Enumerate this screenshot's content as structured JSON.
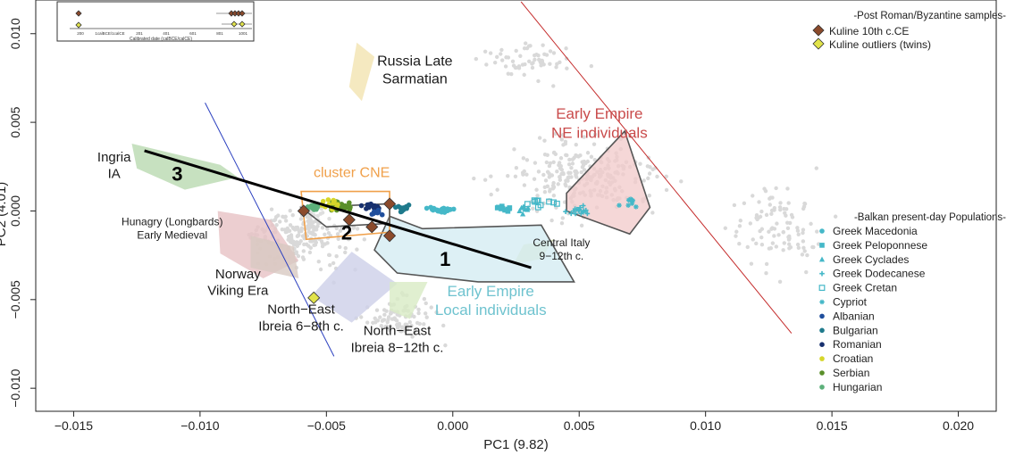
{
  "chart_data": {
    "type": "scatter",
    "xlabel": "PC1 (9.82)",
    "ylabel": "PC2 (4.01)",
    "xlim": [
      -0.0165,
      0.0215
    ],
    "ylim": [
      -0.0113,
      0.0119
    ],
    "xticks": [
      -0.015,
      -0.01,
      -0.005,
      0.0,
      0.005,
      0.01,
      0.015,
      0.02
    ],
    "xtick_labels": [
      "−0.015",
      "−0.010",
      "−0.005",
      "0.000",
      "0.005",
      "0.010",
      "0.015",
      "0.020"
    ],
    "yticks": [
      -0.01,
      -0.005,
      0.0,
      0.005,
      0.01
    ],
    "ytick_labels": [
      "−0.010",
      "−0.005",
      "0.000",
      "0.005",
      "0.010"
    ],
    "legend_post_roman": {
      "title": "-Post Roman/Byzantine samples-",
      "entries": [
        {
          "name": "Kuline 10th c.CE",
          "color": "#8b4a2b",
          "marker": "diamond"
        },
        {
          "name": "Kuline outliers (twins)",
          "color": "#e1e34a",
          "marker": "diamond"
        }
      ]
    },
    "legend_balkan": {
      "title": "-Balkan present-day Populations-",
      "entries": [
        {
          "name": "Greek Macedonia",
          "color": "#45b8c8",
          "marker": "circle"
        },
        {
          "name": "Greek Peloponnese",
          "color": "#45b8c8",
          "marker": "square"
        },
        {
          "name": "Greek Cyclades",
          "color": "#45b8c8",
          "marker": "triangle"
        },
        {
          "name": "Greek Dodecanese",
          "color": "#45b8c8",
          "marker": "plus"
        },
        {
          "name": "Greek Cretan",
          "color": "#45b8c8",
          "marker": "square-open"
        },
        {
          "name": "Cypriot",
          "color": "#45b8c8",
          "marker": "star"
        },
        {
          "name": "Albanian",
          "color": "#1f4e9c",
          "marker": "circle"
        },
        {
          "name": "Bulgarian",
          "color": "#1f7a8c",
          "marker": "circle"
        },
        {
          "name": "Romanian",
          "color": "#17306e",
          "marker": "circle"
        },
        {
          "name": "Croatian",
          "color": "#d6d62a",
          "marker": "circle"
        },
        {
          "name": "Serbian",
          "color": "#5a8f2a",
          "marker": "circle"
        },
        {
          "name": "Hungarian",
          "color": "#5cb07a",
          "marker": "circle"
        }
      ]
    },
    "kuline_10th": [
      [
        -0.0059,
        0.0
      ],
      [
        -0.0041,
        -0.0005
      ],
      [
        -0.0032,
        -0.0009
      ],
      [
        -0.0025,
        -0.0014
      ],
      [
        -0.0025,
        0.0004
      ]
    ],
    "kuline_outliers": [
      [
        -0.0055,
        -0.0049
      ]
    ],
    "regions": [
      {
        "label": "Russia Late\nSarmatian",
        "color": "#f3e3b0",
        "points": [
          [
            -0.0038,
            0.0095
          ],
          [
            -0.0031,
            0.0087
          ],
          [
            -0.0036,
            0.0062
          ],
          [
            -0.0041,
            0.007
          ]
        ],
        "label_at": [
          -0.0015,
          0.0082
        ],
        "label_color": "#1a1a1a",
        "label_size": 16
      },
      {
        "label": "Ingria\nIA",
        "color": "#b9d9b0",
        "points": [
          [
            -0.0127,
            0.0038
          ],
          [
            -0.0092,
            0.0026
          ],
          [
            -0.0085,
            0.0019
          ],
          [
            -0.0106,
            0.0012
          ],
          [
            -0.0125,
            0.0024
          ]
        ],
        "label_at": [
          -0.0134,
          0.0028
        ],
        "label_color": "#1a1a1a",
        "label_size": 15
      },
      {
        "label": "Hunagry (Longbards)\nEarly Medieval",
        "color": "#e7c2c4",
        "points": [
          [
            -0.0093,
            0.0
          ],
          [
            -0.0072,
            -0.0005
          ],
          [
            -0.0061,
            -0.0028
          ],
          [
            -0.0075,
            -0.0038
          ],
          [
            -0.0092,
            -0.0024
          ]
        ],
        "label_at": [
          -0.0111,
          -0.0008
        ],
        "label_color": "#1a1a1a",
        "label_size": 12
      },
      {
        "label": "Norway\nViking Era",
        "color": "#d8c9c2",
        "points": [
          [
            -0.008,
            -0.0014
          ],
          [
            -0.0063,
            -0.002
          ],
          [
            -0.0061,
            -0.0038
          ],
          [
            -0.008,
            -0.0032
          ]
        ],
        "label_at": [
          -0.0085,
          -0.0038
        ],
        "label_color": "#1a1a1a",
        "label_size": 15
      },
      {
        "label": "North−East\nIbreia 6−8th c.",
        "color": "#cdd0e8",
        "points": [
          [
            -0.004,
            -0.0023
          ],
          [
            -0.0022,
            -0.0041
          ],
          [
            -0.004,
            -0.0063
          ],
          [
            -0.0056,
            -0.0048
          ]
        ],
        "label_at": [
          -0.006,
          -0.0058
        ],
        "label_color": "#1a1a1a",
        "label_size": 15
      },
      {
        "label": "North−East\nIbreia 8−12th c.",
        "color": "#d8ebc4",
        "points": [
          [
            -0.0025,
            -0.004
          ],
          [
            -0.001,
            -0.004
          ],
          [
            -0.0017,
            -0.0061
          ],
          [
            -0.0025,
            -0.0056
          ]
        ],
        "label_at": [
          -0.0022,
          -0.007
        ],
        "label_color": "#1a1a1a",
        "label_size": 15
      },
      {
        "label": "Central Italy\n9−12th c.",
        "color": "#e3ecc0",
        "points": [
          [
            0.0028,
            -0.0019
          ],
          [
            0.004,
            -0.0016
          ],
          [
            0.0035,
            -0.0027
          ],
          [
            0.0024,
            -0.003
          ]
        ],
        "label_at": [
          0.0043,
          -0.002
        ],
        "label_color": "#1a1a1a",
        "label_size": 12
      }
    ],
    "outlined_regions": [
      {
        "label": "Early Empire\nLocal individuals",
        "fill": "#d2ebf2",
        "points": [
          [
            -0.0025,
            -0.0003
          ],
          [
            -0.0012,
            -0.001
          ],
          [
            0.0035,
            -0.0008
          ],
          [
            0.0048,
            -0.004
          ],
          [
            0.001,
            -0.004
          ],
          [
            -0.0022,
            -0.0035
          ],
          [
            -0.0031,
            -0.0022
          ]
        ],
        "label_at": [
          0.0015,
          -0.0048
        ],
        "label_color": "#6fc3cf",
        "label_size": 17
      },
      {
        "label": "Early Empire\nNE individuals",
        "fill": "#f2c9c9",
        "points": [
          [
            0.0045,
            0.001
          ],
          [
            0.0068,
            0.0045
          ],
          [
            0.0078,
            0.0002
          ],
          [
            0.007,
            -0.0013
          ],
          [
            0.0045,
            0.0
          ]
        ],
        "label_at": [
          0.0058,
          0.0052
        ],
        "label_color": "#c94b4b",
        "label_size": 17
      },
      {
        "label": "cluster CNE",
        "fill": "none",
        "stroke": "#f0a04a",
        "points": [
          [
            -0.006,
            0.0011
          ],
          [
            -0.0025,
            0.0011
          ],
          [
            -0.0025,
            -0.0012
          ],
          [
            -0.0058,
            -0.0016
          ]
        ],
        "label_at": [
          -0.004,
          0.0019
        ],
        "label_color": "#f0a04a",
        "label_size": 16
      }
    ],
    "cluster_box": {
      "points": [
        [
          -0.006,
          0.0002
        ],
        [
          -0.0025,
          0.0004
        ],
        [
          -0.0025,
          -0.0007
        ],
        [
          -0.005,
          -0.0009
        ]
      ]
    },
    "trend_line": {
      "from": [
        -0.0122,
        0.0034
      ],
      "to": [
        0.0031,
        -0.0032
      ]
    },
    "reference_lines": [
      {
        "color": "#2a3fbf",
        "from": [
          -0.0098,
          0.0061
        ],
        "to": [
          -0.0047,
          -0.0082
        ]
      },
      {
        "color": "#c42a2a",
        "from": [
          0.0027,
          0.0118
        ],
        "to": [
          0.0134,
          -0.0069
        ]
      }
    ],
    "number_labels": [
      {
        "text": "1",
        "at": [
          -0.0003,
          -0.0031
        ]
      },
      {
        "text": "2",
        "at": [
          -0.0042,
          -0.0016
        ]
      },
      {
        "text": "3",
        "at": [
          -0.0109,
          0.0017
        ]
      }
    ],
    "inset": {
      "xlabel": "Calibrated date (calBCE/calCE)",
      "ticks": [
        "200",
        "1calBCE/1calCE",
        "201",
        "401",
        "601",
        "801",
        "1001"
      ]
    }
  }
}
